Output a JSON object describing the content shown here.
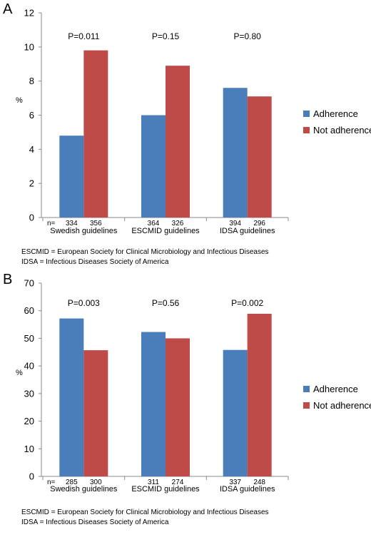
{
  "chart_data": [
    {
      "type": "bar",
      "panel": "A",
      "ylabel": "%",
      "ylim": [
        0,
        12
      ],
      "yticks": [
        0,
        2,
        4,
        6,
        8,
        10,
        12
      ],
      "categories": [
        "Swedish guidelines",
        "ESCMID guidelines",
        "IDSA guidelines"
      ],
      "series": [
        {
          "name": "Adherence",
          "color": "#4a7ebb",
          "values": [
            4.8,
            6.0,
            7.6
          ]
        },
        {
          "name": "Not adherence",
          "color": "#be4b48",
          "values": [
            9.8,
            8.9,
            7.1
          ]
        }
      ],
      "pvalues": [
        "P=0.011",
        "P=0.15",
        "P=0.80"
      ],
      "n_prefix": "n=",
      "n": [
        [
          "334",
          "356"
        ],
        [
          "364",
          "326"
        ],
        [
          "394",
          "296"
        ]
      ],
      "footnotes": [
        "ESCMID = European Society for Clinical Microbiology and Infectious Diseases",
        "IDSA = Infectious Diseases Society of America"
      ],
      "grid": false,
      "legend_position": "right"
    },
    {
      "type": "bar",
      "panel": "B",
      "ylabel": "%",
      "ylim": [
        0,
        70
      ],
      "yticks": [
        0,
        10,
        20,
        30,
        40,
        50,
        60,
        70
      ],
      "categories": [
        "Swedish guidelines",
        "ESCMID guidelines",
        "IDSA guidelines"
      ],
      "series": [
        {
          "name": "Adherence",
          "color": "#4a7ebb",
          "values": [
            57.2,
            52.3,
            45.8
          ]
        },
        {
          "name": "Not adherence",
          "color": "#be4b48",
          "values": [
            45.7,
            50.0,
            58.9
          ]
        }
      ],
      "pvalues": [
        "P=0.003",
        "P=0.56",
        "P=0.002"
      ],
      "n_prefix": "n=",
      "n": [
        [
          "285",
          "300"
        ],
        [
          "311",
          "274"
        ],
        [
          "337",
          "248"
        ]
      ],
      "footnotes": [
        "ESCMID = European Society for Clinical Microbiology and Infectious Diseases",
        "IDSA = Infectious Diseases Society of America"
      ],
      "grid": false,
      "legend_position": "right"
    }
  ]
}
